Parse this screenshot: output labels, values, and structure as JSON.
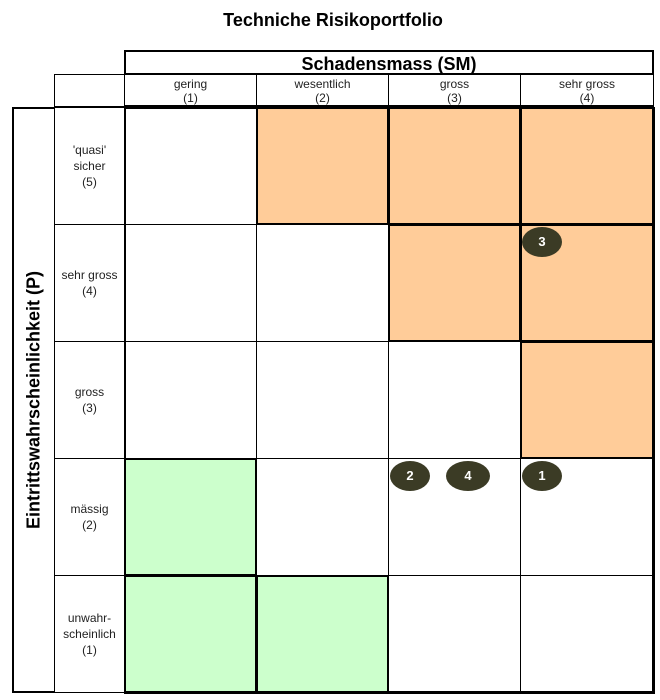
{
  "title": "Techniche Risikoportfolio",
  "x_axis": {
    "title": "Schadensmass (SM)",
    "columns": [
      {
        "name": "gering",
        "level": "(1)"
      },
      {
        "name": "wesentlich",
        "level": "(2)"
      },
      {
        "name": "gross",
        "level": "(3)"
      },
      {
        "name": "sehr gross",
        "level": "(4)"
      }
    ]
  },
  "y_axis": {
    "title": "Eintrittswahrscheinlichkeit (P)",
    "rows": [
      {
        "name": "'quasi' sicher",
        "level": "(5)"
      },
      {
        "name": "sehr gross",
        "level": "(4)"
      },
      {
        "name": "gross",
        "level": "(3)"
      },
      {
        "name": "mässig",
        "level": "(2)"
      },
      {
        "name": "unwahr-scheinlich",
        "level": "(1)"
      }
    ]
  },
  "zone_colors": {
    "high": "#ffcc99",
    "low": "#ccffcc",
    "neutral": "#ffffff",
    "marker": "#3b3b25"
  },
  "zones": {
    "high": [
      [
        5,
        2
      ],
      [
        5,
        3
      ],
      [
        5,
        4
      ],
      [
        4,
        3
      ],
      [
        4,
        4
      ],
      [
        3,
        4
      ]
    ],
    "low": [
      [
        2,
        1
      ],
      [
        1,
        1
      ],
      [
        1,
        2
      ]
    ]
  },
  "risks": [
    {
      "label": "3",
      "sm": 4,
      "p": 4
    },
    {
      "label": "2",
      "sm": 3,
      "p": 2
    },
    {
      "label": "4",
      "sm": 3,
      "p": 2
    },
    {
      "label": "1",
      "sm": 4,
      "p": 2
    }
  ]
}
